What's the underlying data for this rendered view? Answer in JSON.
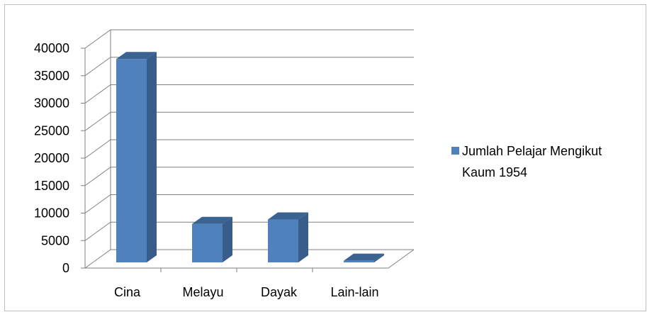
{
  "chart_data": {
    "type": "bar",
    "categories": [
      "Cina",
      "Melayu",
      "Dayak",
      "Lain-lain"
    ],
    "series": [
      {
        "name": "Jumlah Pelajar Mengikut Kaum 1954",
        "values": [
          37000,
          7000,
          7800,
          300
        ],
        "color": "#4f81bd"
      }
    ],
    "y_ticks": [
      "0",
      "5000",
      "10000",
      "15000",
      "20000",
      "25000",
      "30000",
      "35000",
      "40000"
    ],
    "ylim": [
      0,
      40000
    ],
    "grid": true,
    "legend_position": "right",
    "legend_lines": [
      "Jumlah Pelajar Mengikut",
      "Kaum 1954"
    ],
    "style": "3d-column"
  }
}
